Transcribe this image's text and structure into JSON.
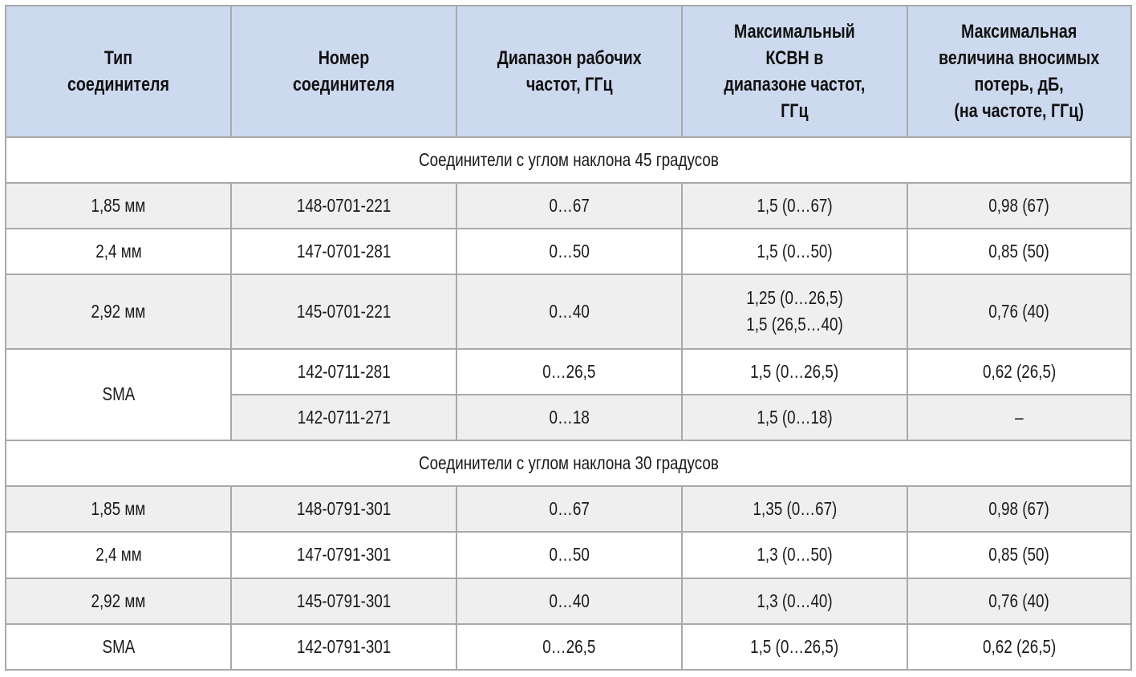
{
  "headers": [
    [
      "Тип",
      "соединителя"
    ],
    [
      "Номер",
      "соединителя"
    ],
    [
      "Диапазон рабочих",
      "частот, ГГц"
    ],
    [
      "Максимальный",
      "КСВН в",
      "диапазоне частот,",
      "ГГц"
    ],
    [
      "Максимальная",
      "величина вносимых",
      "потерь, дБ,",
      "(на частоте, ГГц)"
    ]
  ],
  "section1": {
    "title": "Соединители с углом наклона 45 градусов",
    "rows": [
      {
        "type": "1,85 мм",
        "number": "148-0701-221",
        "range": "0…67",
        "vswr": [
          "1,5 (0…67)"
        ],
        "loss": "0,98 (67)"
      },
      {
        "type": "2,4 мм",
        "number": "147-0701-281",
        "range": "0…50",
        "vswr": [
          "1,5 (0…50)"
        ],
        "loss": "0,85 (50)"
      },
      {
        "type": "2,92 мм",
        "number": "145-0701-221",
        "range": "0…40",
        "vswr": [
          "1,25 (0…26,5)",
          "1,5 (26,5…40)"
        ],
        "loss": "0,76 (40)"
      },
      {
        "type": "SMA",
        "number": "142-0711-281",
        "range": "0…26,5",
        "vswr": [
          "1,5 (0…26,5)"
        ],
        "loss": "0,62 (26,5)"
      },
      {
        "type": "",
        "number": "142-0711-271",
        "range": "0…18",
        "vswr": [
          "1,5 (0…18)"
        ],
        "loss": "–"
      }
    ]
  },
  "section2": {
    "title": "Соединители с углом наклона 30 градусов",
    "rows": [
      {
        "type": "1,85 мм",
        "number": "148-0791-301",
        "range": "0…67",
        "vswr": [
          "1,35 (0…67)"
        ],
        "loss": "0,98 (67)"
      },
      {
        "type": "2,4 мм",
        "number": "147-0791-301",
        "range": "0…50",
        "vswr": [
          "1,3 (0…50)"
        ],
        "loss": "0,85 (50)"
      },
      {
        "type": "2,92 мм",
        "number": "145-0791-301",
        "range": "0…40",
        "vswr": [
          "1,3 (0…40)"
        ],
        "loss": "0,76 (40)"
      },
      {
        "type": "SMA",
        "number": "142-0791-301",
        "range": "0…26,5",
        "vswr": [
          "1,5 (0…26,5)"
        ],
        "loss": "0,62 (26,5)"
      }
    ]
  },
  "colors": {
    "header_bg": "#cdd9ee",
    "row_grey": "#efefef",
    "row_white": "#ffffff",
    "border": "#a9a9a9"
  }
}
